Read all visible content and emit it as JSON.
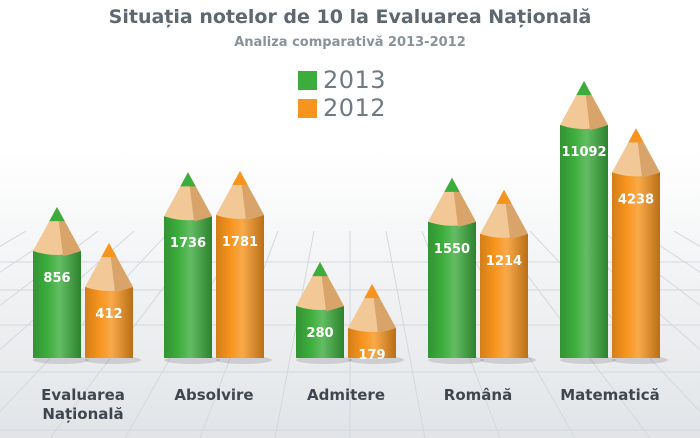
{
  "chart_data": {
    "type": "bar",
    "title": "Situația notelor de 10 la Evaluarea Națională",
    "subtitle": "Analiza comparativă 2013-2012",
    "categories": [
      "Evaluarea\nNațională",
      "Absolvire",
      "Admitere",
      "Română",
      "Matematică"
    ],
    "series": [
      {
        "name": "2013",
        "color": "#3cad3c",
        "values": [
          856,
          1736,
          280,
          1550,
          11092
        ]
      },
      {
        "name": "2012",
        "color": "#f7941d",
        "values": [
          412,
          1781,
          179,
          1214,
          4238
        ]
      }
    ],
    "legend": "top-center",
    "grid": true,
    "bar_style": "pencil"
  }
}
